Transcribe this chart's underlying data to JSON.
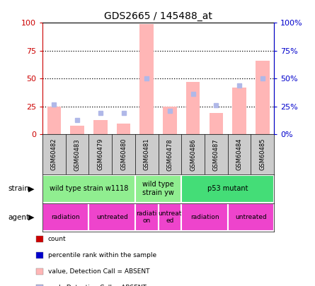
{
  "title": "GDS2665 / 145488_at",
  "samples": [
    "GSM60482",
    "GSM60483",
    "GSM60479",
    "GSM60480",
    "GSM60481",
    "GSM60478",
    "GSM60486",
    "GSM60487",
    "GSM60484",
    "GSM60485"
  ],
  "bar_values": [
    25,
    8,
    13,
    10,
    99,
    25,
    47,
    19,
    42,
    66
  ],
  "rank_values": [
    27,
    13,
    19,
    19,
    50,
    21,
    36,
    26,
    44,
    50
  ],
  "bar_color": "#FFB6B6",
  "rank_color": "#B0B8E8",
  "ylim": [
    0,
    100
  ],
  "yticks": [
    0,
    25,
    50,
    75,
    100
  ],
  "ytick_labels_left": [
    "0",
    "25",
    "50",
    "75",
    "100"
  ],
  "ytick_labels_right": [
    "0%",
    "25%",
    "50%",
    "75%",
    "100%"
  ],
  "strain_groups": [
    {
      "label": "wild type strain w1118",
      "start": 0,
      "end": 4,
      "color": "#90EE90"
    },
    {
      "label": "wild type\nstrain yw",
      "start": 4,
      "end": 6,
      "color": "#90EE90"
    },
    {
      "label": "p53 mutant",
      "start": 6,
      "end": 10,
      "color": "#44DD77"
    }
  ],
  "agent_groups": [
    {
      "label": "radiation",
      "start": 0,
      "end": 2,
      "color": "#EE44CC"
    },
    {
      "label": "untreated",
      "start": 2,
      "end": 4,
      "color": "#EE44CC"
    },
    {
      "label": "radiati\non",
      "start": 4,
      "end": 5,
      "color": "#EE44CC"
    },
    {
      "label": "untreat\ned",
      "start": 5,
      "end": 6,
      "color": "#EE44CC"
    },
    {
      "label": "radiation",
      "start": 6,
      "end": 8,
      "color": "#EE44CC"
    },
    {
      "label": "untreated",
      "start": 8,
      "end": 10,
      "color": "#EE44CC"
    }
  ],
  "legend_items": [
    {
      "color": "#CC0000",
      "label": "count"
    },
    {
      "color": "#0000CC",
      "label": "percentile rank within the sample"
    },
    {
      "color": "#FFB6B6",
      "label": "value, Detection Call = ABSENT"
    },
    {
      "color": "#B0B8E8",
      "label": "rank, Detection Call = ABSENT"
    }
  ],
  "left_axis_color": "#CC0000",
  "right_axis_color": "#0000CC",
  "background_color": "#FFFFFF",
  "xticklabel_bg": "#CCCCCC",
  "grid_dotted_color": "#000000",
  "border_color": "#000000"
}
